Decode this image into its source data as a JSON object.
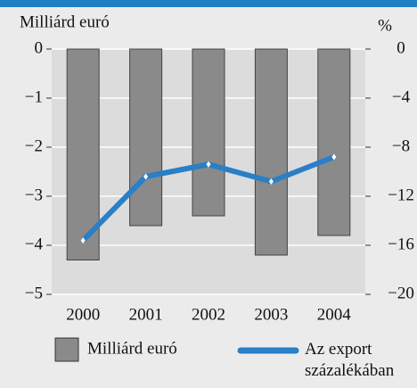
{
  "chart_data": {
    "type": "bar_line",
    "y_label": "Milliárd euró",
    "y2_label": "%",
    "categories": [
      "2000",
      "2001",
      "2002",
      "2003",
      "2004"
    ],
    "series": [
      {
        "name": "Milliárd euró",
        "color": "#8a8a8a",
        "type": "bar",
        "axis": "y",
        "values": [
          -4.3,
          -3.6,
          -3.4,
          -4.2,
          -3.8
        ]
      },
      {
        "name": "Az export százalékában",
        "color": "#2a7fc6",
        "type": "line",
        "axis": "y2",
        "values": [
          -15.6,
          -10.4,
          -9.4,
          -10.8,
          -8.8
        ]
      }
    ],
    "ylim": [
      -5,
      0
    ],
    "yticks": [
      {
        "value": 0,
        "label": "0"
      },
      {
        "value": -1,
        "label": "−1"
      },
      {
        "value": -2,
        "label": "−2"
      },
      {
        "value": -3,
        "label": "−3"
      },
      {
        "value": -4,
        "label": "−4"
      },
      {
        "value": -5,
        "label": "−5"
      }
    ],
    "y2lim": [
      -20,
      0
    ],
    "y2ticks": [
      {
        "value": 0,
        "label": "0"
      },
      {
        "value": -4,
        "label": "−4"
      },
      {
        "value": -8,
        "label": "−8"
      },
      {
        "value": -12,
        "label": "−12"
      },
      {
        "value": -16,
        "label": "−16"
      },
      {
        "value": -20,
        "label": "−20"
      }
    ],
    "grid": true
  }
}
